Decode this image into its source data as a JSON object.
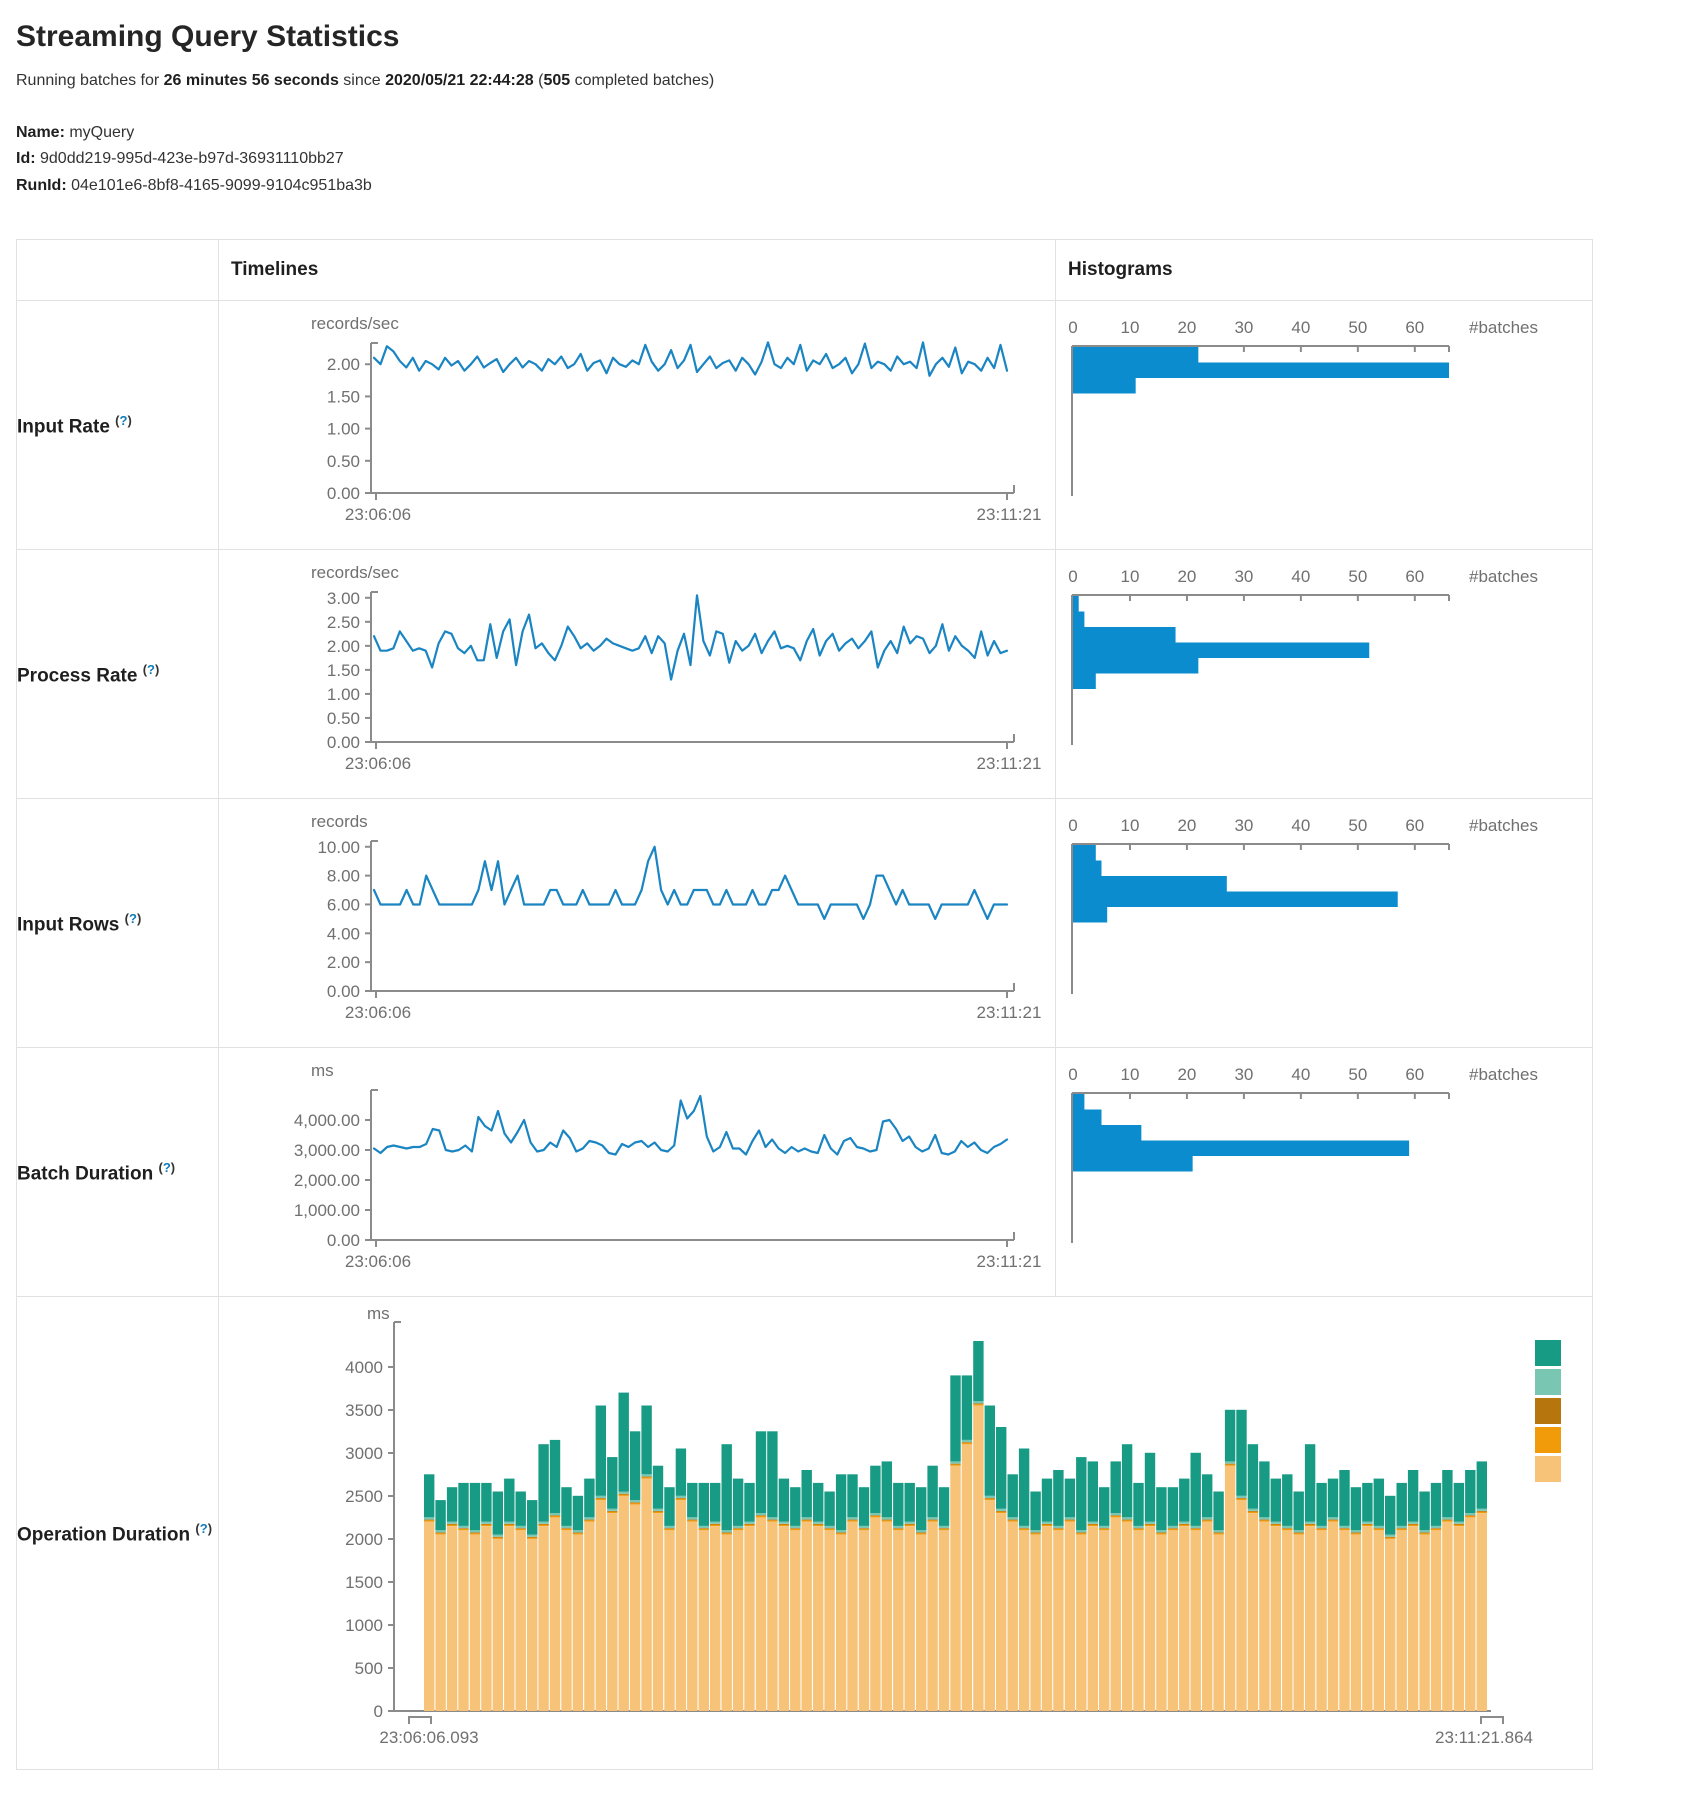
{
  "page": {
    "title": "Streaming Query Statistics",
    "running": {
      "prefix": "Running batches for ",
      "duration": "26 minutes 56 seconds",
      "since_word": " since ",
      "timestamp": "2020/05/21 22:44:28",
      "paren_open": " (",
      "batches_count": "505",
      "suffix": " completed batches)"
    },
    "query": {
      "name_label": "Name:",
      "name": " myQuery",
      "id_label": "Id:",
      "id": " 9d0dd219-995d-423e-b97d-36931110bb27",
      "runid_label": "RunId:",
      "runid": " 04e101e6-8bf8-4165-9099-9104c951ba3b"
    }
  },
  "table": {
    "headers": {
      "timelines": "Timelines",
      "histograms": "Histograms"
    },
    "help": {
      "open": "(",
      "q": "?",
      "close": ")"
    },
    "rows": [
      {
        "label": "Input Rate"
      },
      {
        "label": "Process Rate"
      },
      {
        "label": "Input Rows"
      },
      {
        "label": "Batch Duration"
      },
      {
        "label": "Operation Duration"
      }
    ]
  },
  "colors": {
    "line": "#1a85c2",
    "bar": "#0a8cce",
    "axis": "#8b8b8b",
    "tick": "#707070",
    "teal": "#189b84",
    "light_teal": "#79c6b3",
    "dark_orange": "#b7760d",
    "orange": "#f19a0a",
    "tan": "#f6c379",
    "help": "#0f7cba",
    "table_border": "#e1e1e1"
  },
  "chart_data": [
    {
      "metric": "Input Rate",
      "timeline": {
        "type": "line",
        "unit": "records/sec",
        "x_start": "23:06:06",
        "x_end": "23:11:21",
        "ylim": [
          0,
          2.33
        ],
        "ytick_vals": [
          0,
          0.5,
          1,
          1.5,
          2
        ],
        "ytick_labels": [
          "0.00",
          "0.50",
          "1.00",
          "1.50",
          "2.00"
        ],
        "values": [
          2.1,
          2.0,
          2.28,
          2.2,
          2.05,
          1.95,
          2.1,
          1.9,
          2.05,
          2.0,
          1.92,
          2.1,
          1.98,
          2.05,
          1.9,
          2.0,
          2.12,
          1.95,
          2.02,
          2.08,
          1.88,
          2.0,
          2.1,
          1.95,
          2.05,
          2.0,
          1.9,
          2.08,
          2.0,
          2.12,
          1.94,
          2.0,
          2.16,
          1.9,
          2.02,
          2.06,
          1.86,
          2.1,
          2.0,
          1.96,
          2.06,
          2.0,
          2.3,
          2.04,
          1.9,
          2.0,
          2.22,
          1.94,
          2.06,
          2.3,
          1.88,
          2.0,
          2.12,
          1.94,
          2.02,
          2.06,
          1.9,
          2.1,
          2.0,
          1.84,
          2.04,
          2.34,
          2.0,
          1.94,
          2.1,
          2.0,
          2.3,
          1.9,
          2.06,
          2.0,
          2.16,
          1.94,
          2.0,
          2.1,
          1.86,
          2.0,
          2.32,
          1.94,
          2.04,
          2.0,
          1.9,
          2.12,
          2.0,
          2.04,
          1.94,
          2.34,
          1.82,
          2.0,
          2.1,
          1.96,
          2.26,
          1.86,
          2.04,
          2.0,
          1.9,
          2.1,
          1.94,
          2.3,
          1.9
        ]
      },
      "histogram": {
        "type": "bar-h",
        "axis_label": "#batches",
        "xmax": 66,
        "xtick_vals": [
          0,
          10,
          20,
          30,
          40,
          50,
          60
        ],
        "xtick_labels": [
          "0",
          "10",
          "20",
          "30",
          "40",
          "50",
          "60"
        ],
        "bins": [
          22,
          66,
          11
        ]
      }
    },
    {
      "metric": "Process Rate",
      "timeline": {
        "type": "line",
        "unit": "records/sec",
        "x_start": "23:06:06",
        "x_end": "23:11:21",
        "ylim": [
          0,
          3.12
        ],
        "ytick_vals": [
          0,
          0.5,
          1,
          1.5,
          2,
          2.5,
          3
        ],
        "ytick_labels": [
          "0.00",
          "0.50",
          "1.00",
          "1.50",
          "2.00",
          "2.50",
          "3.00"
        ],
        "values": [
          2.2,
          1.9,
          1.9,
          1.95,
          2.3,
          2.1,
          1.9,
          1.95,
          1.9,
          1.55,
          2.05,
          2.3,
          2.25,
          1.95,
          1.85,
          2.0,
          1.7,
          1.7,
          2.45,
          1.75,
          2.3,
          2.55,
          1.6,
          2.3,
          2.65,
          1.95,
          2.05,
          1.85,
          1.7,
          2.0,
          2.4,
          2.2,
          1.95,
          2.05,
          1.9,
          2.0,
          2.15,
          2.05,
          2.0,
          1.95,
          1.9,
          1.95,
          2.2,
          1.85,
          2.2,
          2.05,
          1.3,
          1.9,
          2.25,
          1.6,
          3.05,
          2.1,
          1.8,
          2.3,
          2.25,
          1.65,
          2.1,
          1.9,
          2.0,
          2.25,
          1.85,
          2.1,
          2.3,
          1.95,
          2.0,
          1.95,
          1.7,
          2.1,
          2.35,
          1.8,
          2.1,
          2.25,
          1.9,
          2.05,
          2.15,
          1.95,
          2.1,
          2.3,
          1.55,
          1.9,
          2.1,
          1.85,
          2.4,
          2.05,
          2.2,
          2.15,
          1.85,
          2.0,
          2.45,
          1.9,
          2.2,
          2.0,
          1.9,
          1.75,
          2.3,
          1.8,
          2.1,
          1.85,
          1.9
        ]
      },
      "histogram": {
        "type": "bar-h",
        "axis_label": "#batches",
        "xmax": 66,
        "xtick_vals": [
          0,
          10,
          20,
          30,
          40,
          50,
          60
        ],
        "xtick_labels": [
          "0",
          "10",
          "20",
          "30",
          "40",
          "50",
          "60"
        ],
        "bins": [
          1,
          2,
          18,
          52,
          22,
          4
        ]
      }
    },
    {
      "metric": "Input Rows",
      "timeline": {
        "type": "line",
        "unit": "records",
        "x_start": "23:06:06",
        "x_end": "23:11:21",
        "ylim": [
          0,
          10.4
        ],
        "ytick_vals": [
          0,
          2,
          4,
          6,
          8,
          10
        ],
        "ytick_labels": [
          "0.00",
          "2.00",
          "4.00",
          "6.00",
          "8.00",
          "10.00"
        ],
        "values": [
          7,
          6,
          6,
          6,
          6,
          7,
          6,
          6,
          8,
          7,
          6,
          6,
          6,
          6,
          6,
          6,
          7,
          9,
          7,
          9,
          6,
          7,
          8,
          6,
          6,
          6,
          6,
          7,
          7,
          6,
          6,
          6,
          7,
          6,
          6,
          6,
          6,
          7,
          6,
          6,
          6,
          7,
          9,
          10,
          7,
          6,
          7,
          6,
          6,
          7,
          7,
          7,
          6,
          6,
          7,
          6,
          6,
          6,
          7,
          6,
          6,
          7,
          7,
          8,
          7,
          6,
          6,
          6,
          6,
          5,
          6,
          6,
          6,
          6,
          6,
          5,
          6,
          8,
          8,
          7,
          6,
          7,
          6,
          6,
          6,
          6,
          5,
          6,
          6,
          6,
          6,
          6,
          7,
          6,
          5,
          6,
          6,
          6
        ]
      },
      "histogram": {
        "type": "bar-h",
        "axis_label": "#batches",
        "xmax": 66,
        "xtick_vals": [
          0,
          10,
          20,
          30,
          40,
          50,
          60
        ],
        "xtick_labels": [
          "0",
          "10",
          "20",
          "30",
          "40",
          "50",
          "60"
        ],
        "bins": [
          4,
          5,
          27,
          57,
          6
        ]
      }
    },
    {
      "metric": "Batch Duration",
      "timeline": {
        "type": "line",
        "unit": "ms",
        "x_start": "23:06:06",
        "x_end": "23:11:21",
        "ylim": [
          0,
          5000
        ],
        "ytick_vals": [
          0,
          1000,
          2000,
          3000,
          4000
        ],
        "ytick_labels": [
          "0.00",
          "1,000.00",
          "2,000.00",
          "3,000.00",
          "4,000.00"
        ],
        "values": [
          3050,
          2900,
          3100,
          3150,
          3100,
          3050,
          3100,
          3100,
          3200,
          3700,
          3650,
          3000,
          2950,
          3000,
          3150,
          2950,
          4100,
          3800,
          3650,
          4300,
          3550,
          3250,
          3600,
          4000,
          3250,
          2950,
          3000,
          3250,
          3100,
          3650,
          3400,
          2950,
          3050,
          3300,
          3250,
          3150,
          2900,
          2850,
          3200,
          3100,
          3250,
          3300,
          3100,
          3250,
          3000,
          2950,
          3150,
          4650,
          4050,
          4300,
          4800,
          3450,
          2950,
          3100,
          3600,
          3050,
          3050,
          2850,
          3300,
          3650,
          3100,
          3350,
          3050,
          2900,
          3100,
          2950,
          3050,
          2950,
          2900,
          3500,
          3050,
          2850,
          3300,
          3400,
          3100,
          3050,
          2950,
          3000,
          3950,
          4000,
          3700,
          3300,
          3450,
          3100,
          2950,
          3050,
          3500,
          2900,
          2850,
          2950,
          3300,
          3100,
          3250,
          3000,
          2900,
          3100,
          3200,
          3350
        ]
      },
      "histogram": {
        "type": "bar-h",
        "axis_label": "#batches",
        "xmax": 66,
        "xtick_vals": [
          0,
          10,
          20,
          30,
          40,
          50,
          60
        ],
        "xtick_labels": [
          "0",
          "10",
          "20",
          "30",
          "40",
          "50",
          "60"
        ],
        "bins": [
          2,
          5,
          12,
          59,
          21
        ]
      }
    },
    {
      "metric": "Operation Duration",
      "timeline": {
        "type": "stacked-bar",
        "unit": "ms",
        "x_start": "23:06:06.093",
        "x_end": "23:11:21.864",
        "ylim": [
          0,
          4523
        ],
        "ytick_vals": [
          0,
          500,
          1000,
          1500,
          2000,
          2500,
          3000,
          3500,
          4000
        ],
        "ytick_labels": [
          "0",
          "500",
          "1000",
          "1500",
          "2000",
          "2500",
          "3000",
          "3500",
          "4000"
        ],
        "legend_order": [
          "teal",
          "light_teal",
          "dark_orange",
          "orange",
          "tan"
        ],
        "stack_order": [
          "tan",
          "orange",
          "dark_orange",
          "light_teal",
          "teal"
        ],
        "fixed_segments": {
          "orange": 18,
          "dark_orange": 8,
          "light_teal": 26
        },
        "bars": [
          [
            2200,
            500
          ],
          [
            2050,
            350
          ],
          [
            2150,
            400
          ],
          [
            2100,
            500
          ],
          [
            2050,
            550
          ],
          [
            2150,
            450
          ],
          [
            2000,
            500
          ],
          [
            2150,
            500
          ],
          [
            2100,
            400
          ],
          [
            2000,
            400
          ],
          [
            2150,
            900
          ],
          [
            2250,
            850
          ],
          [
            2100,
            450
          ],
          [
            2050,
            400
          ],
          [
            2200,
            450
          ],
          [
            2450,
            1050
          ],
          [
            2300,
            600
          ],
          [
            2500,
            1150
          ],
          [
            2400,
            800
          ],
          [
            2700,
            800
          ],
          [
            2300,
            500
          ],
          [
            2100,
            450
          ],
          [
            2450,
            550
          ],
          [
            2200,
            400
          ],
          [
            2100,
            500
          ],
          [
            2150,
            450
          ],
          [
            2050,
            1000
          ],
          [
            2100,
            550
          ],
          [
            2150,
            450
          ],
          [
            2250,
            950
          ],
          [
            2200,
            1000
          ],
          [
            2150,
            500
          ],
          [
            2100,
            450
          ],
          [
            2200,
            550
          ],
          [
            2150,
            450
          ],
          [
            2100,
            400
          ],
          [
            2050,
            650
          ],
          [
            2200,
            500
          ],
          [
            2100,
            450
          ],
          [
            2250,
            550
          ],
          [
            2200,
            650
          ],
          [
            2100,
            500
          ],
          [
            2150,
            450
          ],
          [
            2050,
            500
          ],
          [
            2200,
            600
          ],
          [
            2100,
            450
          ],
          [
            2850,
            1000
          ],
          [
            3100,
            750
          ],
          [
            3550,
            700
          ],
          [
            2450,
            1050
          ],
          [
            2300,
            950
          ],
          [
            2200,
            500
          ],
          [
            2100,
            900
          ],
          [
            2050,
            450
          ],
          [
            2150,
            500
          ],
          [
            2100,
            650
          ],
          [
            2200,
            450
          ],
          [
            2050,
            850
          ],
          [
            2150,
            700
          ],
          [
            2100,
            450
          ],
          [
            2250,
            600
          ],
          [
            2200,
            850
          ],
          [
            2100,
            500
          ],
          [
            2150,
            800
          ],
          [
            2050,
            500
          ],
          [
            2100,
            450
          ],
          [
            2150,
            500
          ],
          [
            2100,
            850
          ],
          [
            2200,
            500
          ],
          [
            2050,
            450
          ],
          [
            2850,
            600
          ],
          [
            2450,
            1000
          ],
          [
            2300,
            750
          ],
          [
            2200,
            650
          ],
          [
            2150,
            500
          ],
          [
            2100,
            600
          ],
          [
            2050,
            450
          ],
          [
            2150,
            900
          ],
          [
            2100,
            500
          ],
          [
            2200,
            450
          ],
          [
            2100,
            650
          ],
          [
            2050,
            500
          ],
          [
            2150,
            450
          ],
          [
            2100,
            550
          ],
          [
            2000,
            450
          ],
          [
            2100,
            500
          ],
          [
            2150,
            600
          ],
          [
            2050,
            450
          ],
          [
            2100,
            500
          ],
          [
            2200,
            550
          ],
          [
            2150,
            450
          ],
          [
            2250,
            500
          ],
          [
            2300,
            550
          ]
        ]
      }
    }
  ]
}
